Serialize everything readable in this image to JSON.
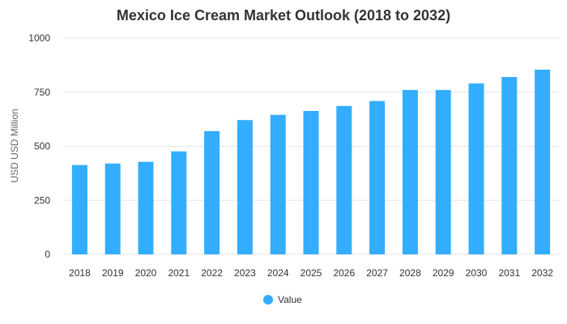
{
  "chart_data": {
    "type": "bar",
    "title": "Mexico Ice Cream Market Outlook (2018 to 2032)",
    "xlabel": "",
    "ylabel": "USD USD Million",
    "ylim": [
      0,
      1000
    ],
    "yticks": [
      "0",
      "250",
      "500",
      "750",
      "1000"
    ],
    "grid": true,
    "legend_position": "bottom",
    "categories": [
      "2018",
      "2019",
      "2020",
      "2021",
      "2022",
      "2023",
      "2024",
      "2025",
      "2026",
      "2027",
      "2028",
      "2029",
      "2030",
      "2031",
      "2032"
    ],
    "series": [
      {
        "name": "Value",
        "color": "#33adff",
        "values": [
          413,
          420,
          428,
          476,
          570,
          621,
          645,
          663,
          686,
          709,
          760,
          760,
          790,
          820,
          854
        ]
      }
    ]
  }
}
